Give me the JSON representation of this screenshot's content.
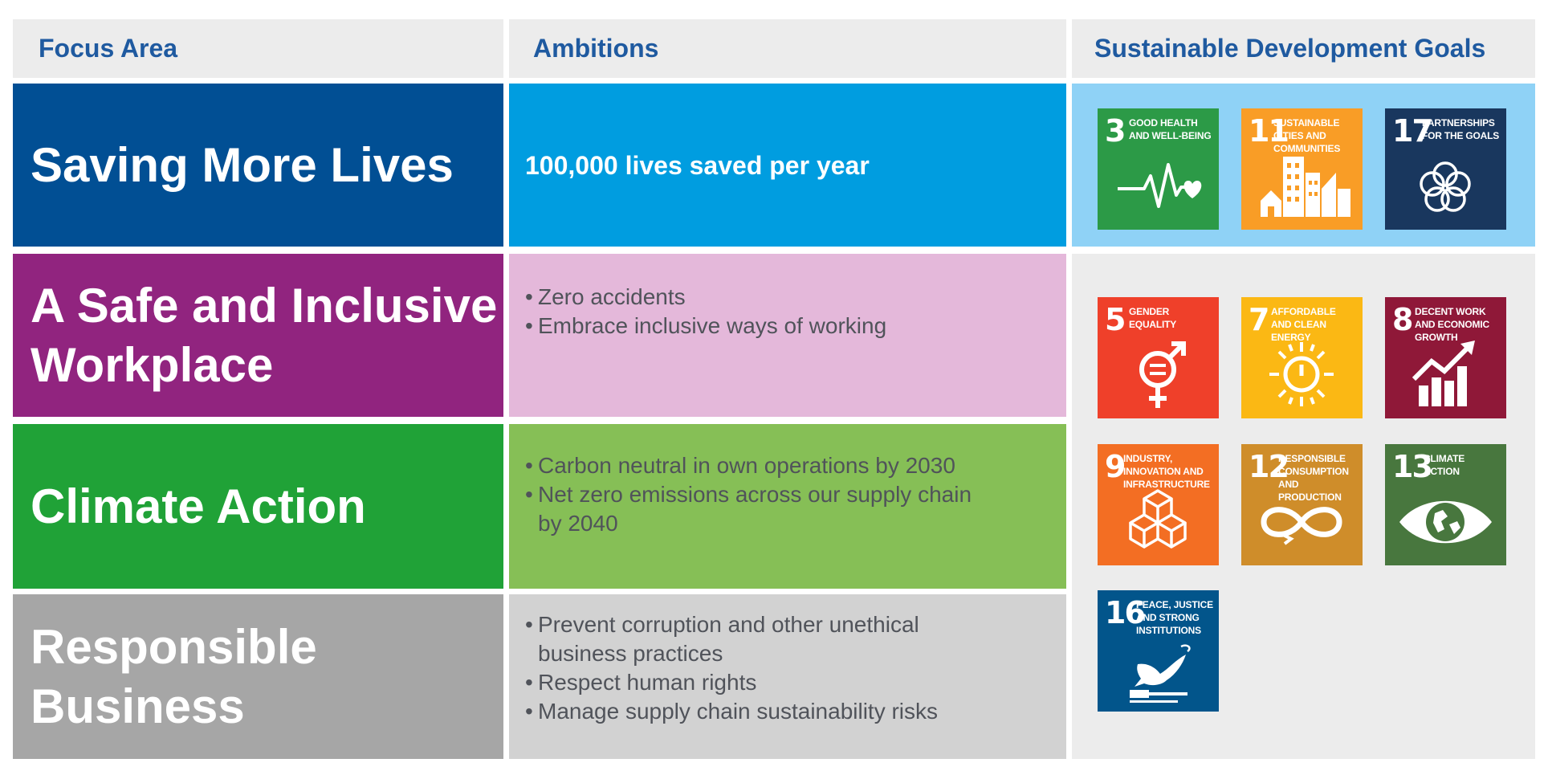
{
  "headers": {
    "focus": "Focus Area",
    "ambitions": "Ambitions",
    "sdg": "Sustainable Development Goals"
  },
  "rows": [
    {
      "focus": "Saving More Lives",
      "color": "#014f94",
      "amb_color": "#009de0",
      "lead": "100,000 lives saved per year"
    },
    {
      "focus": "A Safe and Inclusive Workplace",
      "color": "#91247f",
      "amb_color": "#e4b8da",
      "bullets": [
        "Zero accidents",
        "Embrace inclusive ways of working"
      ]
    },
    {
      "focus": "Climate Action",
      "color": "#20a237",
      "amb_color": "#86bf56",
      "bullets": [
        "Carbon neutral in own operations by 2030",
        "Net zero emissions across our supply chain by 2040"
      ]
    },
    {
      "focus": "Responsible Business",
      "color": "#a6a6a6",
      "amb_color": "#d2d2d2",
      "bullets": [
        "Prevent corruption and other unethical business practices",
        "Respect human rights",
        "Manage supply chain sustainability risks"
      ]
    }
  ],
  "sdg_panel_colors": {
    "top": "#8fd2f6",
    "bottom": "#ececec"
  },
  "sdgs": [
    {
      "num": "3",
      "label": "Good Health and Well-Being",
      "color": "#2c9a47",
      "icon": "heartbeat-icon"
    },
    {
      "num": "11",
      "label": "Sustainable Cities and Communities",
      "color": "#f99d26",
      "icon": "city-icon"
    },
    {
      "num": "17",
      "label": "Partnerships for the Goals",
      "color": "#19375e",
      "icon": "rings-icon"
    },
    {
      "num": "5",
      "label": "Gender Equality",
      "color": "#ef402a",
      "icon": "gender-icon"
    },
    {
      "num": "7",
      "label": "Affordable and Clean Energy",
      "color": "#fbb814",
      "icon": "sun-power-icon"
    },
    {
      "num": "8",
      "label": "Decent Work and Economic Growth",
      "color": "#8f1838",
      "icon": "growth-chart-icon"
    },
    {
      "num": "9",
      "label": "Industry, Innovation and Infrastructure",
      "color": "#f36e23",
      "icon": "cubes-icon"
    },
    {
      "num": "12",
      "label": "Responsible Consumption and Production",
      "color": "#cf8d2a",
      "icon": "infinity-icon"
    },
    {
      "num": "13",
      "label": "Climate Action",
      "color": "#48773e",
      "icon": "earth-eye-icon"
    },
    {
      "num": "16",
      "label": "Peace, Justice and Strong Institutions",
      "color": "#02558b",
      "icon": "dove-gavel-icon"
    }
  ]
}
